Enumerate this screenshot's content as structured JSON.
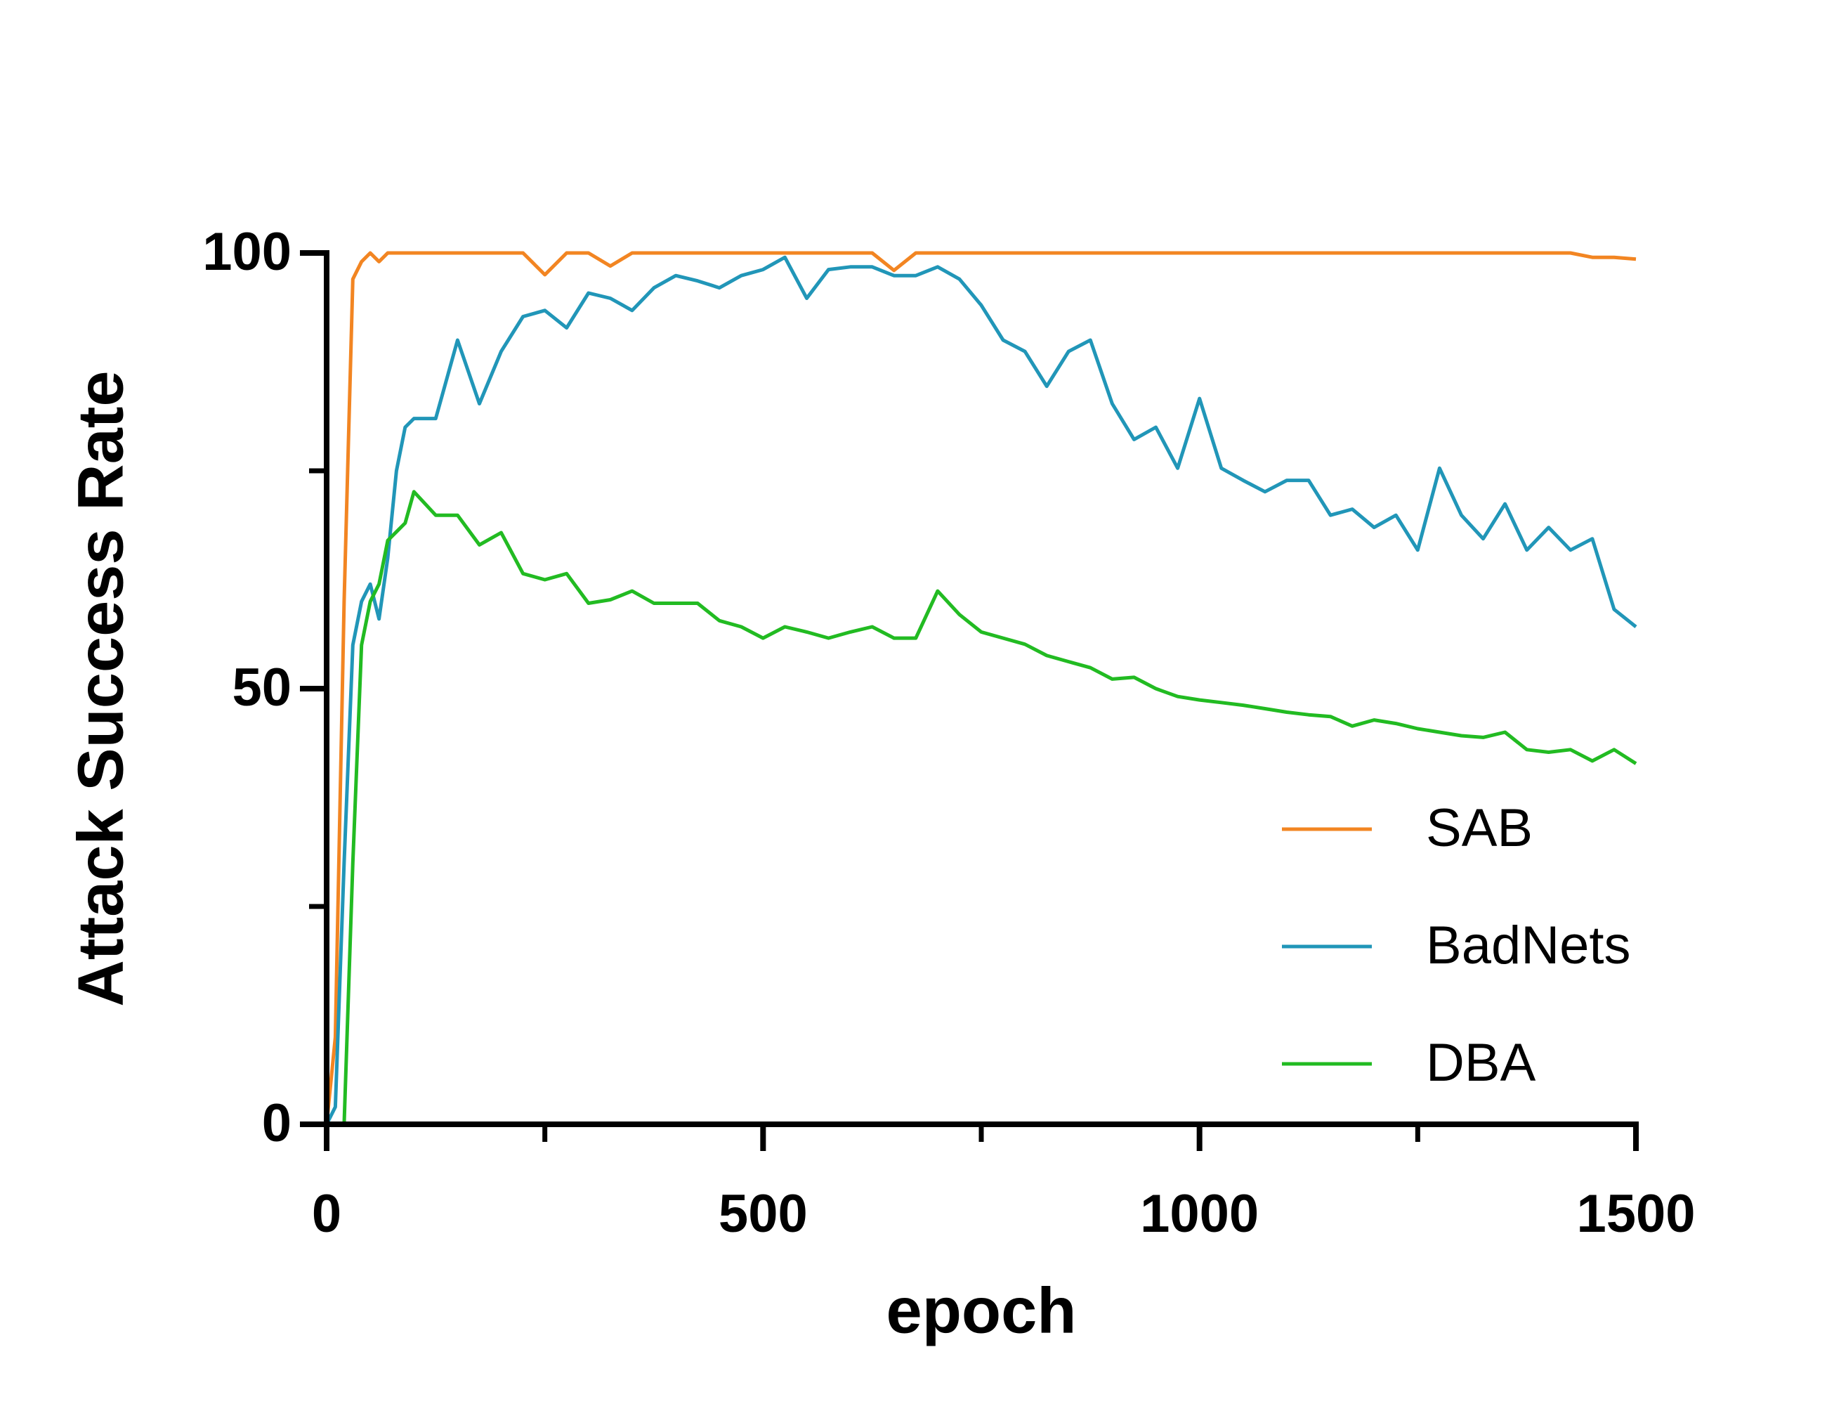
{
  "chart_data": {
    "type": "line",
    "xlabel": "epoch",
    "ylabel": "Attack Success Rate",
    "x": [
      0,
      10,
      20,
      30,
      40,
      50,
      60,
      70,
      80,
      90,
      100,
      125,
      150,
      175,
      200,
      225,
      250,
      275,
      300,
      325,
      350,
      375,
      400,
      425,
      450,
      475,
      500,
      525,
      550,
      575,
      600,
      625,
      650,
      675,
      700,
      725,
      750,
      775,
      800,
      825,
      850,
      875,
      900,
      925,
      950,
      975,
      1000,
      1025,
      1050,
      1075,
      1100,
      1125,
      1150,
      1175,
      1200,
      1225,
      1250,
      1275,
      1300,
      1325,
      1350,
      1375,
      1400,
      1425,
      1450,
      1475,
      1500
    ],
    "series": [
      {
        "name": "SAB",
        "color": "#f28522",
        "values": [
          0,
          10,
          60,
          97,
          99,
          100,
          99,
          100,
          100,
          100,
          100,
          100,
          100,
          100,
          100,
          100,
          97.5,
          100,
          100,
          98.5,
          100,
          100,
          100,
          100,
          100,
          100,
          100,
          100,
          100,
          100,
          100,
          100,
          98,
          100,
          100,
          100,
          100,
          100,
          100,
          100,
          100,
          100,
          100,
          100,
          100,
          100,
          100,
          100,
          100,
          100,
          100,
          100,
          100,
          100,
          100,
          100,
          100,
          100,
          100,
          100,
          100,
          100,
          100,
          100,
          99.5,
          99.5,
          99.3
        ]
      },
      {
        "name": "BadNets",
        "color": "#2196b8",
        "values": [
          0,
          2,
          30,
          55,
          60,
          62,
          58,
          65,
          75,
          80,
          81,
          81,
          90,
          82.7,
          88.7,
          92.7,
          93.4,
          91.4,
          95.4,
          94.8,
          93.4,
          96,
          97.4,
          96.8,
          96,
          97.4,
          98.1,
          99.5,
          94.8,
          98.1,
          98.4,
          98.4,
          97.4,
          97.4,
          98.4,
          97,
          94,
          90,
          88.7,
          84.7,
          88.7,
          90,
          82.7,
          78.6,
          80,
          75.3,
          83.3,
          75.3,
          73.9,
          72.6,
          73.9,
          73.9,
          69.9,
          70.6,
          68.5,
          69.9,
          65.9,
          75.3,
          69.9,
          67.2,
          71.2,
          65.9,
          68.5,
          65.9,
          67.2,
          59.1,
          57.1
        ]
      },
      {
        "name": "DBA",
        "color": "#22bb22",
        "values": [
          0,
          0,
          0,
          30,
          55,
          60,
          62,
          67,
          68,
          69,
          72.6,
          69.9,
          69.9,
          66.5,
          67.9,
          63.2,
          62.5,
          63.2,
          59.8,
          60.2,
          61.2,
          59.8,
          59.8,
          59.8,
          57.8,
          57.1,
          55.8,
          57.1,
          56.5,
          55.8,
          56.5,
          57.1,
          55.8,
          55.8,
          61.2,
          58.5,
          56.5,
          55.8,
          55.1,
          53.8,
          53.1,
          52.4,
          51.1,
          51.3,
          50,
          49.1,
          48.7,
          48.4,
          48.1,
          47.7,
          47.3,
          47,
          46.8,
          45.7,
          46.4,
          46,
          45.4,
          45,
          44.6,
          44.4,
          45,
          43,
          42.7,
          43,
          41.7,
          43,
          41.4
        ]
      }
    ],
    "xlim": [
      0,
      1500
    ],
    "xticks": [
      0,
      500,
      1000,
      1500
    ],
    "xminor": [
      250,
      750,
      1250
    ],
    "ylim": [
      0,
      100
    ],
    "yticks": [
      0,
      50,
      100
    ],
    "yminor": [
      25,
      75
    ],
    "legend": "lower right"
  }
}
